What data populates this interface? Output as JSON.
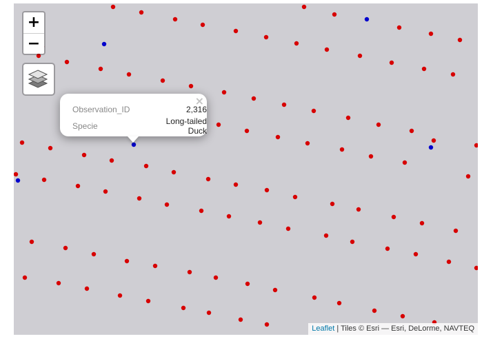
{
  "map": {
    "zoom_in_label": "+",
    "zoom_out_label": "−",
    "layers_icon": "layers-icon",
    "background_color": "#cfced3",
    "colors": {
      "observation_point": "#d70000",
      "highlight_point": "#0000cc"
    }
  },
  "popup": {
    "close_label": "×",
    "rows": [
      {
        "key": "Observation_ID",
        "value": "2,316"
      },
      {
        "key": "Specie",
        "value": "Long-tailed Duck"
      }
    ]
  },
  "attribution": {
    "link_label": "Leaflet",
    "text": " | Tiles © Esri — Esri, DeLorme, NAVTEQ"
  }
}
